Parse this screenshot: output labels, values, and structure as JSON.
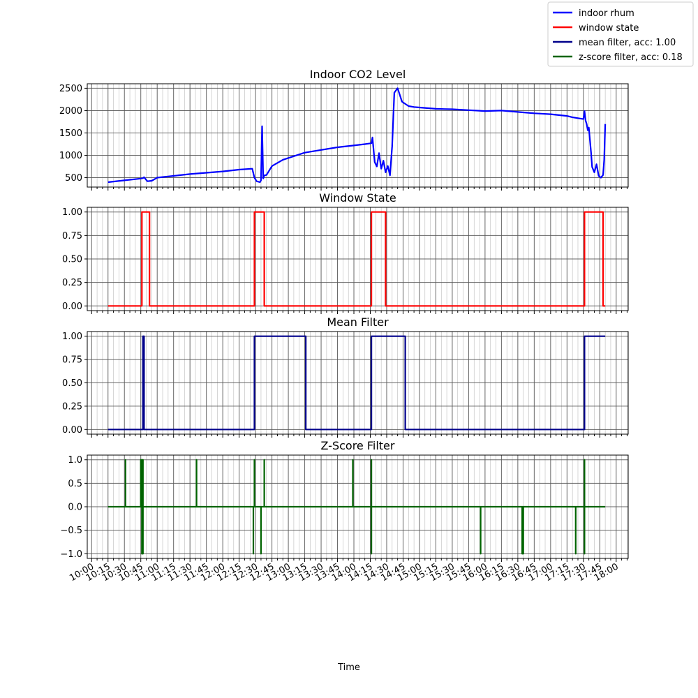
{
  "legend": {
    "placement": "top-right",
    "entries": [
      {
        "label": "indoor rhum",
        "color": "#0000ff"
      },
      {
        "label": "window state",
        "color": "#ff0000"
      },
      {
        "label": "mean filter, acc: 1.00",
        "color": "#00008b"
      },
      {
        "label": "z-score filter, acc: 0.18",
        "color": "#006400"
      }
    ]
  },
  "xlabel": "Time",
  "x_ticks": [
    "10:00",
    "10:15",
    "10:30",
    "10:45",
    "11:00",
    "11:15",
    "11:30",
    "11:45",
    "12:00",
    "12:15",
    "12:30",
    "12:45",
    "13:00",
    "13:15",
    "13:30",
    "13:45",
    "14:00",
    "14:15",
    "14:30",
    "14:45",
    "15:00",
    "15:15",
    "15:30",
    "15:45",
    "16:00",
    "16:15",
    "16:30",
    "16:45",
    "17:00",
    "17:15",
    "17:30",
    "17:45",
    "18:00"
  ],
  "chart_data": [
    {
      "type": "line",
      "title": "Indoor CO2 Level",
      "xlim": [
        "09:56",
        "18:11"
      ],
      "ylim": [
        290,
        2600
      ],
      "yticks": [
        500,
        1000,
        1500,
        2000,
        2500
      ],
      "ytick_labels": [
        "500",
        "1000",
        "1500",
        "2000",
        "2500"
      ],
      "grid": true,
      "series": [
        {
          "name": "indoor rhum",
          "color": "#0000ff",
          "x": [
            "10:15",
            "10:30",
            "10:45",
            "10:47",
            "10:48",
            "10:51",
            "10:55",
            "11:00",
            "11:15",
            "11:30",
            "11:45",
            "12:00",
            "12:15",
            "12:27",
            "12:29",
            "12:31",
            "12:34",
            "12:35",
            "12:36",
            "12:37",
            "12:38",
            "12:40",
            "12:45",
            "12:55",
            "13:05",
            "13:15",
            "13:30",
            "13:45",
            "14:00",
            "14:10",
            "14:16",
            "14:17",
            "14:19",
            "14:21",
            "14:23",
            "14:25",
            "14:27",
            "14:29",
            "14:31",
            "14:33",
            "14:35",
            "14:37",
            "14:40",
            "14:42",
            "14:44",
            "14:50",
            "14:55",
            "15:00",
            "15:15",
            "15:30",
            "15:45",
            "16:00",
            "16:15",
            "16:30",
            "16:45",
            "17:00",
            "17:15",
            "17:20",
            "17:25",
            "17:30",
            "17:31",
            "17:32",
            "17:33",
            "17:34",
            "17:35",
            "17:37",
            "17:38",
            "17:40",
            "17:42",
            "17:44",
            "17:46",
            "17:48",
            "17:49",
            "17:50"
          ],
          "y": [
            400,
            440,
            480,
            490,
            510,
            420,
            430,
            500,
            540,
            580,
            610,
            640,
            680,
            700,
            500,
            420,
            400,
            440,
            1650,
            480,
            550,
            560,
            760,
            900,
            980,
            1060,
            1120,
            1180,
            1220,
            1250,
            1270,
            1400,
            850,
            750,
            1050,
            700,
            880,
            620,
            760,
            550,
            1200,
            2400,
            2500,
            2350,
            2200,
            2100,
            2080,
            2070,
            2040,
            2030,
            2010,
            1990,
            2000,
            1970,
            1940,
            1920,
            1880,
            1850,
            1830,
            1810,
            1990,
            1780,
            1700,
            1560,
            1620,
            1060,
            740,
            620,
            800,
            540,
            500,
            560,
            900,
            1700
          ]
        }
      ]
    },
    {
      "type": "line",
      "title": "Window State",
      "xlim": [
        "09:56",
        "18:11"
      ],
      "ylim": [
        -0.05,
        1.05
      ],
      "yticks": [
        0,
        0.25,
        0.5,
        0.75,
        1.0
      ],
      "ytick_labels": [
        "0.00",
        "0.25",
        "0.50",
        "0.75",
        "1.00"
      ],
      "grid": true,
      "series": [
        {
          "name": "window state",
          "color": "#ff0000",
          "x": [
            "10:15",
            "10:46",
            "10:46",
            "10:53",
            "10:53",
            "12:29",
            "12:29",
            "12:38",
            "12:38",
            "14:16",
            "14:16",
            "14:29",
            "14:29",
            "17:31",
            "17:31",
            "17:48",
            "17:48",
            "17:50"
          ],
          "y": [
            0,
            0,
            1,
            1,
            0,
            0,
            1,
            1,
            0,
            0,
            1,
            1,
            0,
            0,
            1,
            1,
            0,
            0
          ]
        }
      ]
    },
    {
      "type": "line",
      "title": "Mean Filter",
      "xlim": [
        "09:56",
        "18:11"
      ],
      "ylim": [
        -0.05,
        1.05
      ],
      "yticks": [
        0,
        0.25,
        0.5,
        0.75,
        1.0
      ],
      "ytick_labels": [
        "0.00",
        "0.25",
        "0.50",
        "0.75",
        "1.00"
      ],
      "grid": true,
      "series": [
        {
          "name": "mean filter, acc: 1.00",
          "color": "#00008b",
          "x": [
            "10:15",
            "10:47",
            "10:47",
            "10:48",
            "10:48",
            "12:29",
            "12:29",
            "13:16",
            "13:16",
            "14:16",
            "14:16",
            "14:47",
            "14:47",
            "17:31",
            "17:31",
            "17:50"
          ],
          "y": [
            0,
            0,
            1,
            1,
            0,
            0,
            1,
            1,
            0,
            0,
            1,
            1,
            0,
            0,
            1,
            1
          ]
        }
      ]
    },
    {
      "type": "line",
      "title": "Z-Score Filter",
      "xlim": [
        "09:56",
        "18:11"
      ],
      "ylim": [
        -1.1,
        1.1
      ],
      "yticks": [
        -1.0,
        -0.5,
        0.0,
        0.5,
        1.0
      ],
      "ytick_labels": [
        "−1.0",
        "−0.5",
        "0.0",
        "0.5",
        "1.0"
      ],
      "grid": true,
      "series": [
        {
          "name": "z-score filter, acc: 0.18",
          "color": "#006400",
          "x": [
            "10:15",
            "10:31",
            "10:31",
            "10:31",
            "10:45",
            "10:45",
            "10:45",
            "10:46",
            "10:46",
            "10:46",
            "10:46",
            "10:46",
            "10:46",
            "10:47",
            "10:47",
            "10:47",
            "10:47",
            "10:47",
            "10:47",
            "11:36",
            "11:36",
            "11:36",
            "12:28",
            "12:28",
            "12:28",
            "12:29",
            "12:29",
            "12:29",
            "12:35",
            "12:35",
            "12:35",
            "12:38",
            "12:38",
            "12:38",
            "13:59",
            "13:59",
            "13:59",
            "14:16",
            "14:16",
            "14:16",
            "14:16",
            "14:16",
            "14:16",
            "15:56",
            "15:56",
            "15:56",
            "16:34",
            "16:34",
            "16:34",
            "16:35",
            "16:35",
            "16:35",
            "17:23",
            "17:23",
            "17:23",
            "17:31",
            "17:31",
            "17:31",
            "17:31",
            "17:31",
            "17:31",
            "17:50"
          ],
          "y": [
            0,
            0,
            1,
            0,
            0,
            1,
            0,
            0,
            1,
            0,
            0,
            -1,
            0,
            0,
            1,
            0,
            0,
            -1,
            0,
            0,
            1,
            0,
            0,
            -1,
            0,
            0,
            1,
            0,
            0,
            -1,
            0,
            0,
            1,
            0,
            0,
            1,
            0,
            0,
            1,
            0,
            0,
            -1,
            0,
            0,
            -1,
            0,
            0,
            -1,
            0,
            0,
            -1,
            0,
            0,
            -1,
            0,
            0,
            1,
            0,
            0,
            -1,
            0,
            0
          ]
        }
      ]
    }
  ]
}
